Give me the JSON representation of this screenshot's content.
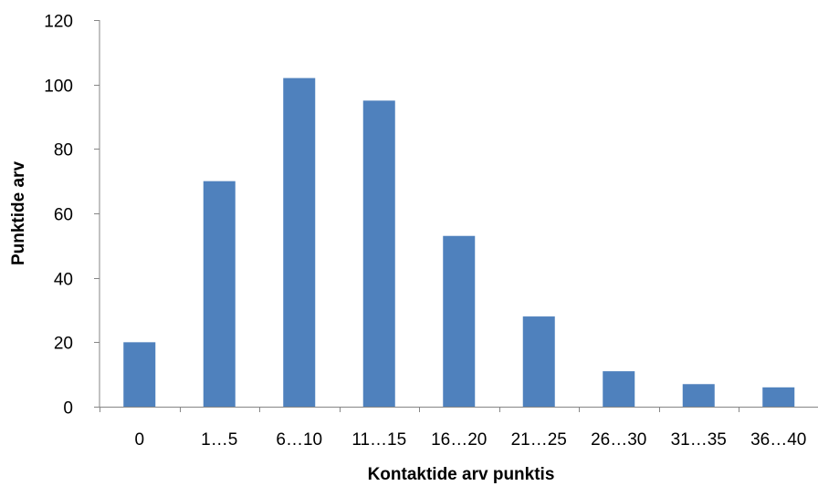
{
  "chart_data": {
    "type": "bar",
    "categories": [
      "0",
      "1…5",
      "6…10",
      "11…15",
      "16…20",
      "21…25",
      "26…30",
      "31…35",
      "36…40"
    ],
    "series": [
      {
        "values": [
          20,
          70,
          102,
          95,
          53,
          28,
          11,
          7,
          6
        ],
        "color": "#4F81BD"
      }
    ],
    "xlabel": "Kontaktide arv punktis",
    "ylabel": "Punktide arv",
    "ylim": [
      0,
      120
    ],
    "yticks": [
      "0",
      "20",
      "40",
      "60",
      "80",
      "100",
      "120"
    ],
    "grid": false,
    "legend": "none"
  }
}
